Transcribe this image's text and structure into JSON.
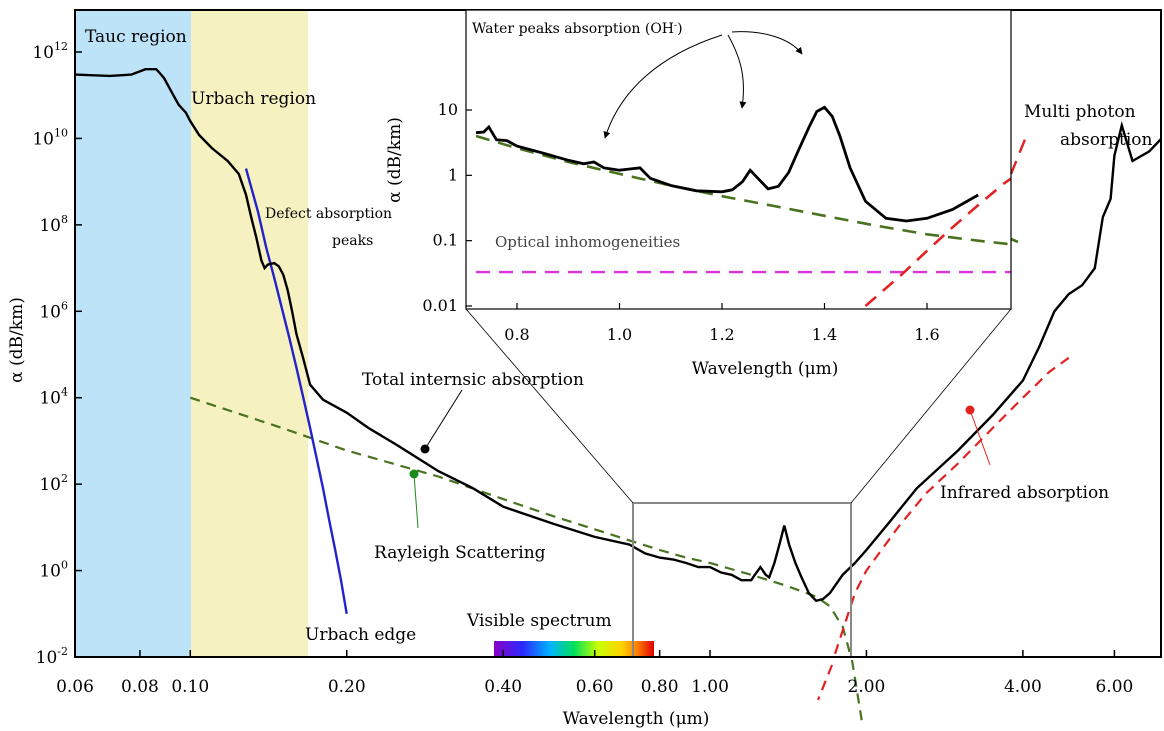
{
  "chart_data": [
    {
      "type": "line",
      "xscale": "log",
      "yscale": "log",
      "xlabel": "Wavelength (μm)",
      "ylabel": "α (dB/km)",
      "xlim": [
        0.06,
        7.5
      ],
      "ylim": [
        0.01,
        1000000000000000
      ],
      "x_ticks": [
        {
          "value": 0.06,
          "label": "0.06"
        },
        {
          "value": 0.08,
          "label": "0.08"
        },
        {
          "value": 0.1,
          "label": "0.10"
        },
        {
          "value": 0.2,
          "label": "0.20"
        },
        {
          "value": 0.4,
          "label": "0.40"
        },
        {
          "value": 0.6,
          "label": "0.60"
        },
        {
          "value": 0.8,
          "label": "0.80"
        },
        {
          "value": 1.0,
          "label": "1.00"
        },
        {
          "value": 2.0,
          "label": "2.00"
        },
        {
          "value": 4.0,
          "label": "4.00"
        },
        {
          "value": 6.0,
          "label": "6.00"
        }
      ],
      "y_ticks": [
        {
          "value": 0.01,
          "base": "10",
          "exp": "-2"
        },
        {
          "value": 1,
          "base": "10",
          "exp": "0"
        },
        {
          "value": 100,
          "base": "10",
          "exp": "2"
        },
        {
          "value": 10000,
          "base": "10",
          "exp": "4"
        },
        {
          "value": 1000000,
          "base": "10",
          "exp": "6"
        },
        {
          "value": 100000000,
          "base": "10",
          "exp": "8"
        },
        {
          "value": 10000000000,
          "base": "10",
          "exp": "10"
        },
        {
          "value": 1000000000000,
          "base": "10",
          "exp": "12"
        }
      ],
      "regions": [
        {
          "label": "Tauc region",
          "x": [
            0.06,
            0.1
          ],
          "color": "#bde3f8"
        },
        {
          "label": "Urbach region",
          "x": [
            0.1,
            0.155
          ],
          "color": "#f6f1c0"
        }
      ],
      "visible_spectrum": {
        "label": "Visible spectrum",
        "x": [
          0.38,
          0.78
        ]
      },
      "zoom_box": {
        "x": [
          0.72,
          1.85
        ],
        "y": [
          0.01,
          100
        ]
      },
      "series": [
        {
          "key": "total",
          "color": "#000000",
          "dash": "solid",
          "x": [
            0.06,
            0.07,
            0.077,
            0.082,
            0.086,
            0.089,
            0.092,
            0.095,
            0.098,
            0.1,
            0.104,
            0.11,
            0.118,
            0.124,
            0.128,
            0.131,
            0.134,
            0.137,
            0.139,
            0.141,
            0.145,
            0.148,
            0.151,
            0.154,
            0.157,
            0.16,
            0.165,
            0.17,
            0.18,
            0.2,
            0.22,
            0.25,
            0.3,
            0.35,
            0.4,
            0.5,
            0.6,
            0.7,
            0.75,
            0.8,
            0.85,
            0.9,
            0.95,
            1.0,
            1.05,
            1.1,
            1.15,
            1.2,
            1.22,
            1.25,
            1.28,
            1.3,
            1.33,
            1.36,
            1.39,
            1.42,
            1.46,
            1.5,
            1.55,
            1.6,
            1.65,
            1.7,
            1.8,
            1.9,
            2.0,
            2.2,
            2.5,
            3.0,
            3.5,
            4.0,
            4.3,
            4.6,
            4.9,
            5.2,
            5.5,
            5.7,
            5.9,
            6.0,
            6.2,
            6.5,
            7.0,
            7.5
          ],
          "y": [
            300000000000.0,
            280000000000.0,
            300000000000.0,
            400000000000.0,
            400000000000.0,
            250000000000.0,
            120000000000.0,
            60000000000.0,
            40000000000.0,
            25000000000.0,
            12000000000.0,
            6000000000.0,
            3000000000.0,
            1500000000.0,
            500000000.0,
            150000000.0,
            50000000.0,
            15000000.0,
            10000000.0,
            12000000.0,
            13000000.0,
            11000000.0,
            7000000.0,
            3000000.0,
            1000000.0,
            300000.0,
            80000.0,
            20000.0,
            9000,
            4500,
            2000,
            800,
            200,
            80,
            30,
            12,
            6,
            4,
            2.5,
            2,
            1.8,
            1.5,
            1.2,
            1.2,
            0.9,
            0.8,
            0.6,
            0.6,
            0.8,
            1.2,
            0.8,
            0.7,
            1.5,
            4,
            11,
            4,
            1.5,
            0.7,
            0.3,
            0.2,
            0.22,
            0.3,
            0.8,
            1.5,
            3,
            12,
            80,
            600,
            4000,
            25000,
            150000.0,
            1000000.0,
            2500000.0,
            4000000.0,
            10000000.0,
            150000000.0,
            400000000.0,
            4000000000.0,
            20000000000.0,
            3000000000.0,
            5000000000.0,
            12000000000.0
          ]
        },
        {
          "key": "urbach",
          "color": "#2323cc",
          "dash": "solid",
          "x": [
            0.128,
            0.135,
            0.14,
            0.145,
            0.15,
            0.155,
            0.16,
            0.165,
            0.17,
            0.175,
            0.18,
            0.185,
            0.19,
            0.195,
            0.2
          ],
          "y": [
            2000000000.0,
            200000000.0,
            30000000.0,
            6000000.0,
            1200000.0,
            250000.0,
            50000.0,
            10000.0,
            2000,
            400,
            80,
            15,
            3,
            0.6,
            0.1
          ]
        },
        {
          "key": "rayleigh",
          "color": "#4a7320",
          "dash": "dashed",
          "x": [
            0.1,
            0.15,
            0.2,
            0.3,
            0.4,
            0.5,
            0.6,
            0.7,
            0.8,
            0.9,
            1.0,
            1.2,
            1.4,
            1.6,
            1.7,
            1.8,
            1.85,
            1.9
          ],
          "y": [
            10000,
            2000,
            600,
            150,
            45,
            18,
            9,
            5,
            3,
            2,
            1.5,
            0.8,
            0.45,
            0.25,
            0.15,
            0.05,
            0.015,
            0.003
          ]
        },
        {
          "key": "infrared",
          "color": "#e22222",
          "dash": "dashed",
          "x": [
            1.7,
            1.9,
            2.0,
            2.3,
            2.6,
            3.0,
            3.5,
            4.0,
            4.5,
            5.0
          ],
          "y": [
            0.005,
            0.3,
            1,
            10,
            60,
            300,
            2000,
            10000,
            40000,
            100000
          ]
        }
      ]
    },
    {
      "type": "line",
      "xscale": "linear",
      "yscale": "log",
      "xlabel": "Wavelength (μm)",
      "ylabel": "α (dB/km)",
      "xlim": [
        0.72,
        1.85
      ],
      "ylim": [
        0.01,
        50
      ],
      "x_ticks": [
        {
          "value": 0.8,
          "label": "0.8"
        },
        {
          "value": 1.0,
          "label": "1.0"
        },
        {
          "value": 1.2,
          "label": "1.2"
        },
        {
          "value": 1.4,
          "label": "1.4"
        },
        {
          "value": 1.6,
          "label": "1.6"
        }
      ],
      "y_ticks": [
        {
          "value": 0.01,
          "label": "0.01"
        },
        {
          "value": 0.1,
          "label": "0.1"
        },
        {
          "value": 1,
          "label": "1"
        },
        {
          "value": 10,
          "label": "10"
        }
      ],
      "series": [
        {
          "key": "total",
          "color": "#000000",
          "dash": "solid",
          "x": [
            0.72,
            0.735,
            0.745,
            0.76,
            0.78,
            0.8,
            0.85,
            0.9,
            0.93,
            0.95,
            0.97,
            1.0,
            1.02,
            1.04,
            1.06,
            1.1,
            1.15,
            1.2,
            1.22,
            1.24,
            1.255,
            1.27,
            1.29,
            1.31,
            1.33,
            1.35,
            1.37,
            1.385,
            1.4,
            1.415,
            1.43,
            1.45,
            1.48,
            1.52,
            1.56,
            1.6,
            1.65,
            1.7
          ],
          "y": [
            4.5,
            4.6,
            5.5,
            3.5,
            3.4,
            2.8,
            2.2,
            1.7,
            1.5,
            1.6,
            1.3,
            1.2,
            1.25,
            1.3,
            0.9,
            0.7,
            0.58,
            0.56,
            0.6,
            0.8,
            1.2,
            0.9,
            0.62,
            0.68,
            1.1,
            2.5,
            5.5,
            9.5,
            11,
            8,
            4,
            1.3,
            0.4,
            0.22,
            0.2,
            0.22,
            0.3,
            0.5
          ]
        },
        {
          "key": "rayleigh",
          "color": "#4a7320",
          "dash": "dashed",
          "x": [
            0.72,
            0.8,
            0.9,
            1.0,
            1.1,
            1.2,
            1.3,
            1.4,
            1.5,
            1.6,
            1.7,
            1.8,
            1.85
          ],
          "y": [
            4.0,
            2.6,
            1.6,
            1.05,
            0.7,
            0.48,
            0.34,
            0.24,
            0.17,
            0.125,
            0.1,
            0.082,
            0.075
          ]
        },
        {
          "key": "optical",
          "color": "#dd33dd",
          "dash": "dashed",
          "x": [
            0.72,
            1.85
          ],
          "y": [
            0.033,
            0.033
          ]
        },
        {
          "key": "infrared",
          "color": "#e22222",
          "dash": "dashed",
          "x": [
            1.48,
            1.55,
            1.6,
            1.65,
            1.7,
            1.75,
            1.8,
            1.85
          ],
          "y": [
            0.01,
            0.03,
            0.07,
            0.16,
            0.35,
            0.75,
            1.4,
            2.2
          ]
        }
      ]
    }
  ],
  "annotations": {
    "tauc_region": "Tauc region",
    "urbach_region": "Urbach region",
    "defect_line1": "Defect absorption",
    "defect_line2": "peaks",
    "multi_line1": "Multi photon",
    "multi_line2": "absorption",
    "total": "Total internsic absorption",
    "rayleigh": "Rayleigh Scattering",
    "urbach_edge": "Urbach edge",
    "infrared": "Infrared absorption",
    "visible_spectrum": "Visible spectrum",
    "inset_water": "Water peaks absorption (OH",
    "inset_water_sup": "-",
    "inset_water_close": ")",
    "inset_optical": "Optical inhomogeneities"
  }
}
